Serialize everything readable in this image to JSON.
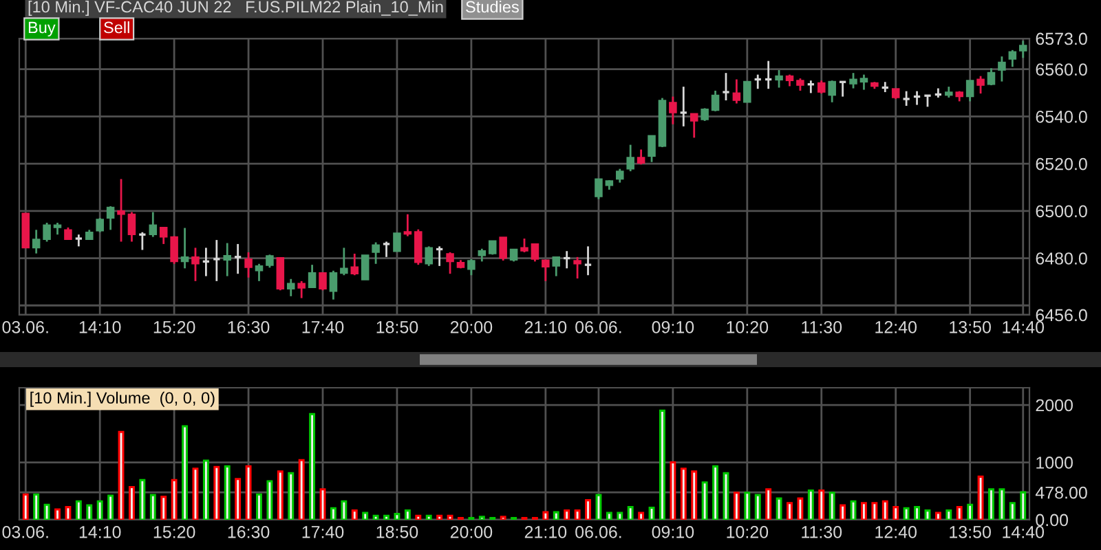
{
  "chart_data": [
    {
      "type": "candlestick",
      "title": "[10 Min.] VF-CAC40 JUN 22   F.US.PILM22 Plain_10_Min",
      "annotations": [
        "Buy",
        "Sell",
        "Studies"
      ],
      "categories": [
        "03.06.",
        null,
        null,
        null,
        null,
        null,
        null,
        "14:10",
        null,
        null,
        null,
        null,
        null,
        null,
        "15:20",
        null,
        null,
        null,
        null,
        null,
        null,
        "16:30",
        null,
        null,
        null,
        null,
        null,
        null,
        "17:40",
        null,
        null,
        null,
        null,
        null,
        null,
        "18:50",
        null,
        null,
        null,
        null,
        null,
        null,
        "20:00",
        null,
        null,
        null,
        null,
        null,
        null,
        "21:10",
        null,
        null,
        null,
        null,
        "06.06.",
        null,
        null,
        null,
        null,
        null,
        null,
        "09:10",
        null,
        null,
        null,
        null,
        null,
        null,
        "10:20",
        null,
        null,
        null,
        null,
        null,
        null,
        "11:30",
        null,
        null,
        null,
        null,
        null,
        null,
        "12:40",
        null,
        null,
        null,
        null,
        null,
        null,
        "13:50",
        null,
        null,
        null,
        null,
        "14:40"
      ],
      "ohlc": [
        [
          6499,
          6499,
          6484.4,
          6484.4
        ],
        [
          6484.4,
          6492,
          6482,
          6488
        ],
        [
          6488,
          6495,
          6487,
          6494
        ],
        [
          6493,
          6495,
          6490,
          6494
        ],
        [
          6492,
          6493,
          6488,
          6488
        ],
        [
          6488.3,
          6490,
          6485,
          6488.3
        ],
        [
          6488,
          6492,
          6488,
          6491
        ],
        [
          6491.6,
          6497,
          6491,
          6496.4
        ],
        [
          6497,
          6502,
          6492,
          6501.5
        ],
        [
          6500,
          6513.5,
          6487,
          6498.6
        ],
        [
          6498.6,
          6499.5,
          6487,
          6490
        ],
        [
          6490,
          6491,
          6483.5,
          6490
        ],
        [
          6490,
          6499.5,
          6489,
          6494
        ],
        [
          6493,
          6493,
          6486,
          6489
        ],
        [
          6489,
          6489.3,
          6477.6,
          6478.6
        ],
        [
          6478.6,
          6492.8,
          6475.7,
          6480.5
        ],
        [
          6480.5,
          6484.4,
          6470.3,
          6477.6
        ],
        [
          6478.6,
          6484.4,
          6472.4,
          6478.6
        ],
        [
          6479.6,
          6487.7,
          6470.3,
          6479.6
        ],
        [
          6479.2,
          6486.4,
          6472.4,
          6481.1
        ],
        [
          6480.5,
          6486,
          6473.4,
          6480.5
        ],
        [
          6479.6,
          6482.5,
          6471.8,
          6476.1
        ],
        [
          6474.7,
          6477.6,
          6470.3,
          6476.7
        ],
        [
          6477,
          6481.5,
          6476,
          6481
        ],
        [
          6480.2,
          6480.2,
          6466.4,
          6467
        ],
        [
          6467,
          6471.2,
          6463.9,
          6469.3
        ],
        [
          6469.3,
          6470.3,
          6463.1,
          6467.4
        ],
        [
          6467.6,
          6477.2,
          6467.6,
          6473.8
        ],
        [
          6473.8,
          6473.8,
          6466.4,
          6467
        ],
        [
          6466,
          6474.7,
          6462.5,
          6473.8
        ],
        [
          6473.6,
          6484.4,
          6472.8,
          6475.7
        ],
        [
          6476.3,
          6481.9,
          6472.8,
          6473.4
        ],
        [
          6470.9,
          6481.3,
          6470.9,
          6481.3
        ],
        [
          6482.5,
          6486.7,
          6477.6,
          6485.6
        ],
        [
          6486,
          6487,
          6480.5,
          6486
        ],
        [
          6482.9,
          6490.6,
          6482.9,
          6490.6
        ],
        [
          6491.2,
          6498.6,
          6489.3,
          6490.2
        ],
        [
          6491.2,
          6492.2,
          6477.2,
          6478.2
        ],
        [
          6477.6,
          6485,
          6476.7,
          6484.4
        ],
        [
          6483.8,
          6485,
          6476.7,
          6483.8
        ],
        [
          6481.9,
          6482.5,
          6473.4,
          6478.6
        ],
        [
          6478.2,
          6479.2,
          6475.7,
          6476.1
        ],
        [
          6475.3,
          6479.6,
          6472.8,
          6479
        ],
        [
          6481.1,
          6484,
          6478.6,
          6483.1
        ],
        [
          6481.9,
          6487.3,
          6481.5,
          6487.3
        ],
        [
          6488.9,
          6488.9,
          6479,
          6480
        ],
        [
          6479.2,
          6483.8,
          6478.6,
          6483.8
        ],
        [
          6484.4,
          6488.3,
          6482.5,
          6483.1
        ],
        [
          6486,
          6486,
          6478.6,
          6479.6
        ],
        [
          6479.2,
          6479.2,
          6470.3,
          6476.3
        ],
        [
          6476.7,
          6480.5,
          6472.4,
          6480.5
        ],
        [
          6480,
          6483,
          6475.7,
          6480
        ],
        [
          6479,
          6480.5,
          6471.4,
          6477.6
        ],
        [
          6477.2,
          6485,
          6472.8,
          6477.2
        ],
        [
          6506.1,
          6513.5,
          6505,
          6513.5
        ],
        [
          6510.8,
          6513,
          6509,
          6512.7
        ],
        [
          6513.5,
          6517.8,
          6512,
          6516.8
        ],
        [
          6517.8,
          6528,
          6516.8,
          6522.6
        ],
        [
          6522.6,
          6526,
          6519.7,
          6520.3
        ],
        [
          6523.2,
          6531.9,
          6520.7,
          6531.9
        ],
        [
          6527.4,
          6547.8,
          6527,
          6546.8
        ],
        [
          6545.9,
          6548.4,
          6536.7,
          6541.6
        ],
        [
          6541.6,
          6552.6,
          6535.8,
          6541.6
        ],
        [
          6541.2,
          6541.2,
          6531,
          6538.1
        ],
        [
          6538.7,
          6543.5,
          6538.1,
          6543.1
        ],
        [
          6542.6,
          6550.9,
          6542.2,
          6549
        ],
        [
          6550.3,
          6558.4,
          6546.8,
          6550.3
        ],
        [
          6549.9,
          6555.7,
          6545.5,
          6546.8
        ],
        [
          6546,
          6554.8,
          6546,
          6554.8
        ],
        [
          6555.7,
          6557.7,
          6551.7,
          6555.7
        ],
        [
          6555.7,
          6563.5,
          6551.7,
          6555.7
        ],
        [
          6555.5,
          6559.6,
          6552.2,
          6557.1
        ],
        [
          6557.1,
          6557.7,
          6552.8,
          6555.2
        ],
        [
          6555.2,
          6556.1,
          6550.9,
          6553.2
        ],
        [
          6553.6,
          6555.2,
          6549.9,
          6553.6
        ],
        [
          6554.2,
          6555.2,
          6549.7,
          6550.3
        ],
        [
          6549,
          6555.2,
          6546,
          6554.8
        ],
        [
          6554.6,
          6554.6,
          6548.4,
          6554.6
        ],
        [
          6553.8,
          6558.4,
          6551.9,
          6555.7
        ],
        [
          6554.6,
          6557.7,
          6551.3,
          6556.1
        ],
        [
          6554.2,
          6554.6,
          6551.7,
          6552.8
        ],
        [
          6552.2,
          6554.6,
          6550.3,
          6552.2
        ],
        [
          6551.7,
          6551.7,
          6547.4,
          6548
        ],
        [
          6547.4,
          6550.7,
          6544.5,
          6547.4
        ],
        [
          6548.4,
          6550.7,
          6544.9,
          6548.4
        ],
        [
          6548.8,
          6548.8,
          6544.1,
          6548.8
        ],
        [
          6549.3,
          6551.9,
          6548,
          6549.3
        ],
        [
          6549,
          6552.6,
          6548,
          6550.3
        ],
        [
          6550.3,
          6550.7,
          6546.4,
          6548.4
        ],
        [
          6548.4,
          6555.2,
          6546.4,
          6555.2
        ],
        [
          6555.7,
          6557.1,
          6549.7,
          6553.2
        ],
        [
          6553.6,
          6560.4,
          6553.2,
          6558.6
        ],
        [
          6559.6,
          6565.4,
          6554.8,
          6562.9
        ],
        [
          6564.3,
          6568.1,
          6561,
          6567.4
        ],
        [
          6567.8,
          6572,
          6564.8,
          6570.1
        ]
      ],
      "colors": [
        "#e8164a",
        "#4a9c6d",
        "#4a9c6d",
        "#4a9c6d",
        "#e8164a",
        "#c8c8c8",
        "#4a9c6d",
        "#4a9c6d",
        "#4a9c6d",
        "#e8164a",
        "#e8164a",
        "#c8c8c8",
        "#4a9c6d",
        "#e8164a",
        "#e8164a",
        "#4a9c6d",
        "#e8164a",
        "#c8c8c8",
        "#c8c8c8",
        "#4a9c6d",
        "#c8c8c8",
        "#e8164a",
        "#4a9c6d",
        "#4a9c6d",
        "#e8164a",
        "#4a9c6d",
        "#e8164a",
        "#4a9c6d",
        "#e8164a",
        "#4a9c6d",
        "#4a9c6d",
        "#e8164a",
        "#4a9c6d",
        "#4a9c6d",
        "#c8c8c8",
        "#4a9c6d",
        "#e8164a",
        "#e8164a",
        "#4a9c6d",
        "#c8c8c8",
        "#e8164a",
        "#e8164a",
        "#4a9c6d",
        "#4a9c6d",
        "#4a9c6d",
        "#e8164a",
        "#4a9c6d",
        "#e8164a",
        "#e8164a",
        "#e8164a",
        "#4a9c6d",
        "#c8c8c8",
        "#e8164a",
        "#c8c8c8",
        "#4a9c6d",
        "#4a9c6d",
        "#4a9c6d",
        "#4a9c6d",
        "#e8164a",
        "#4a9c6d",
        "#4a9c6d",
        "#e8164a",
        "#c8c8c8",
        "#e8164a",
        "#4a9c6d",
        "#4a9c6d",
        "#c8c8c8",
        "#e8164a",
        "#4a9c6d",
        "#c8c8c8",
        "#c8c8c8",
        "#4a9c6d",
        "#e8164a",
        "#e8164a",
        "#c8c8c8",
        "#e8164a",
        "#4a9c6d",
        "#c8c8c8",
        "#4a9c6d",
        "#4a9c6d",
        "#e8164a",
        "#c8c8c8",
        "#e8164a",
        "#c8c8c8",
        "#c8c8c8",
        "#c8c8c8",
        "#c8c8c8",
        "#4a9c6d",
        "#e8164a",
        "#4a9c6d",
        "#e8164a",
        "#4a9c6d",
        "#4a9c6d",
        "#4a9c6d",
        "#4a9c6d"
      ],
      "ylim": [
        6456,
        6573
      ],
      "yticks": [
        {
          "value": 6456,
          "label": "6456.0"
        },
        {
          "value": 6460,
          "label": null
        },
        {
          "value": 6480,
          "label": "6480.0"
        },
        {
          "value": 6500,
          "label": "6500.0"
        },
        {
          "value": 6520,
          "label": "6520.0"
        },
        {
          "value": 6540,
          "label": "6540.0"
        },
        {
          "value": 6560,
          "label": "6560.0"
        },
        {
          "value": 6573,
          "label": "6573.0"
        }
      ],
      "grid": true
    },
    {
      "type": "bar",
      "title": "[10 Min.] Volume  (0, 0, 0)",
      "categories": [
        "03.06.",
        null,
        null,
        null,
        null,
        null,
        null,
        "14:10",
        null,
        null,
        null,
        null,
        null,
        null,
        "15:20",
        null,
        null,
        null,
        null,
        null,
        null,
        "16:30",
        null,
        null,
        null,
        null,
        null,
        null,
        "17:40",
        null,
        null,
        null,
        null,
        null,
        null,
        "18:50",
        null,
        null,
        null,
        null,
        null,
        null,
        "20:00",
        null,
        null,
        null,
        null,
        null,
        null,
        "21:10",
        null,
        null,
        null,
        null,
        "06.06.",
        null,
        null,
        null,
        null,
        null,
        null,
        "09:10",
        null,
        null,
        null,
        null,
        null,
        null,
        "10:20",
        null,
        null,
        null,
        null,
        null,
        null,
        "11:30",
        null,
        null,
        null,
        null,
        null,
        null,
        "12:40",
        null,
        null,
        null,
        null,
        null,
        null,
        "13:50",
        null,
        null,
        null,
        null,
        "14:40"
      ],
      "values": [
        440,
        440,
        260,
        180,
        220,
        320,
        250,
        320,
        420,
        1530,
        570,
        690,
        430,
        400,
        690,
        1630,
        890,
        1030,
        920,
        930,
        710,
        930,
        440,
        670,
        840,
        810,
        1040,
        1840,
        530,
        200,
        320,
        160,
        120,
        70,
        70,
        100,
        160,
        70,
        70,
        70,
        70,
        30,
        30,
        50,
        30,
        50,
        30,
        30,
        30,
        130,
        130,
        160,
        160,
        340,
        430,
        120,
        120,
        220,
        120,
        210,
        1900,
        1000,
        890,
        840,
        650,
        930,
        810,
        470,
        470,
        430,
        530,
        370,
        290,
        370,
        510,
        510,
        470,
        250,
        320,
        290,
        290,
        320,
        220,
        200,
        220,
        160,
        120,
        160,
        220,
        260,
        750,
        530,
        530,
        290,
        478
      ],
      "colors": [
        "#ff0000",
        "#00c800",
        "#00c800",
        "#ff0000",
        "#ff0000",
        "#00c800",
        "#00c800",
        "#00c800",
        "#00c800",
        "#ff0000",
        "#ff0000",
        "#00c800",
        "#00c800",
        "#ff0000",
        "#ff0000",
        "#00c800",
        "#ff0000",
        "#00c800",
        "#ff0000",
        "#00c800",
        "#ff0000",
        "#ff0000",
        "#00c800",
        "#00c800",
        "#ff0000",
        "#00c800",
        "#ff0000",
        "#00c800",
        "#ff0000",
        "#00c800",
        "#00c800",
        "#ff0000",
        "#00c800",
        "#00c800",
        "#00c800",
        "#00c800",
        "#00c800",
        "#ff0000",
        "#00c800",
        "#ff0000",
        "#ff0000",
        "#ff0000",
        "#00c800",
        "#00c800",
        "#00c800",
        "#ff0000",
        "#00c800",
        "#ff0000",
        "#ff0000",
        "#ff0000",
        "#00c800",
        "#ff0000",
        "#ff0000",
        "#ff0000",
        "#00c800",
        "#00c800",
        "#00c800",
        "#00c800",
        "#ff0000",
        "#00c800",
        "#00c800",
        "#ff0000",
        "#ff0000",
        "#ff0000",
        "#00c800",
        "#00c800",
        "#00c800",
        "#ff0000",
        "#00c800",
        "#00c800",
        "#ff0000",
        "#00c800",
        "#ff0000",
        "#ff0000",
        "#00c800",
        "#ff0000",
        "#00c800",
        "#ff0000",
        "#00c800",
        "#ff0000",
        "#ff0000",
        "#ff0000",
        "#ff0000",
        "#00c800",
        "#00c800",
        "#00c800",
        "#ff0000",
        "#00c800",
        "#ff0000",
        "#00c800",
        "#ff0000",
        "#00c800",
        "#00c800",
        "#00c800",
        "#00c800"
      ],
      "ylim": [
        0,
        2300
      ],
      "yticks": [
        {
          "value": 0,
          "label": "0.00"
        },
        {
          "value": 478,
          "label": "478.00"
        },
        1000,
        2000
      ],
      "grid": true
    }
  ]
}
